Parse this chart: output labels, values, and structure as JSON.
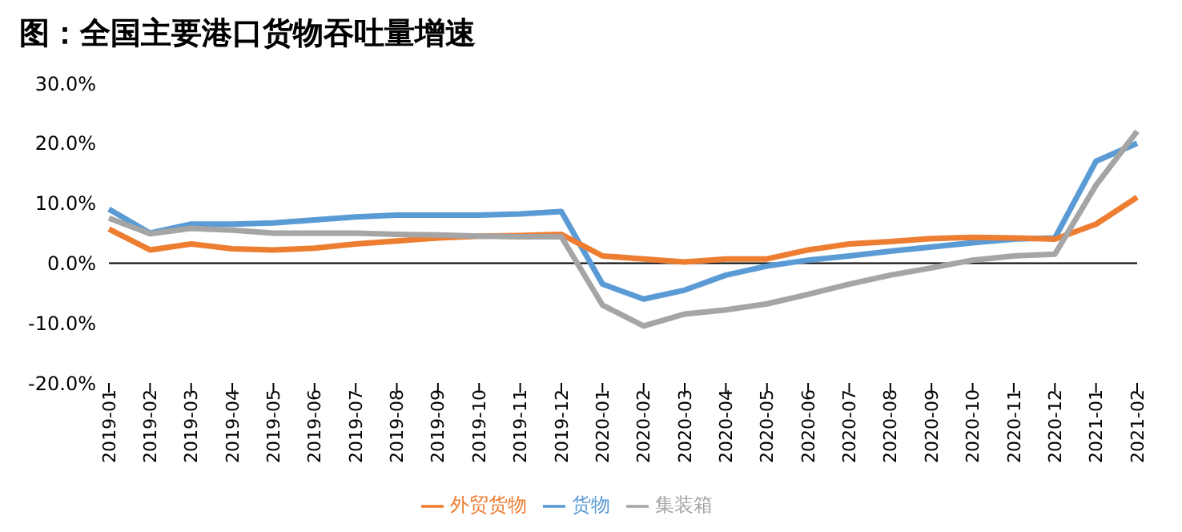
{
  "chart_data": {
    "type": "line",
    "title": "图：全国主要港口货物吞吐量增速",
    "categories": [
      "2019-01",
      "2019-02",
      "2019-03",
      "2019-04",
      "2019-05",
      "2019-06",
      "2019-07",
      "2019-08",
      "2019-09",
      "2019-10",
      "2019-11",
      "2019-12",
      "2020-01",
      "2020-02",
      "2020-03",
      "2020-04",
      "2020-05",
      "2020-06",
      "2020-07",
      "2020-08",
      "2020-09",
      "2020-10",
      "2020-11",
      "2020-12",
      "2021-01",
      "2021-02"
    ],
    "series": [
      {
        "name": "货物",
        "color": "#5b9bd5",
        "values": [
          9,
          5,
          6.5,
          6.5,
          6.7,
          7.2,
          7.7,
          8,
          8,
          8,
          8.2,
          8.6,
          -3.5,
          -6,
          -4.5,
          -2,
          -0.5,
          0.5,
          1.2,
          2,
          2.7,
          3.4,
          4,
          4.2,
          17,
          20
        ]
      },
      {
        "name": "外贸货物",
        "color": "#ed7d31",
        "values": [
          5.7,
          2.2,
          3.2,
          2.4,
          2.2,
          2.5,
          3.2,
          3.7,
          4.2,
          4.5,
          4.6,
          4.8,
          1.2,
          0.7,
          0.2,
          0.7,
          0.7,
          2.2,
          3.2,
          3.6,
          4.1,
          4.3,
          4.2,
          4,
          6.5,
          11
        ]
      },
      {
        "name": "集装箱",
        "color": "#a5a5a5",
        "values": [
          7.5,
          4.9,
          5.8,
          5.5,
          5,
          5,
          5,
          4.8,
          4.7,
          4.5,
          4.4,
          4.4,
          -7,
          -10.5,
          -8.5,
          -7.8,
          -6.8,
          -5.2,
          -3.5,
          -2,
          -0.8,
          0.5,
          1.2,
          1.5,
          13,
          22
        ]
      }
    ],
    "ylim": [
      -20,
      30
    ],
    "yticks": [
      {
        "value": -20,
        "label": "-20.0%"
      },
      {
        "value": -10,
        "label": "-10.0%"
      },
      {
        "value": 0,
        "label": "0.0%"
      },
      {
        "value": 10,
        "label": "10.0%"
      },
      {
        "value": 20,
        "label": "20.0%"
      },
      {
        "value": 30,
        "label": "30.0%"
      }
    ],
    "legend": "bottom",
    "marker": "none",
    "line_style": "solid"
  }
}
